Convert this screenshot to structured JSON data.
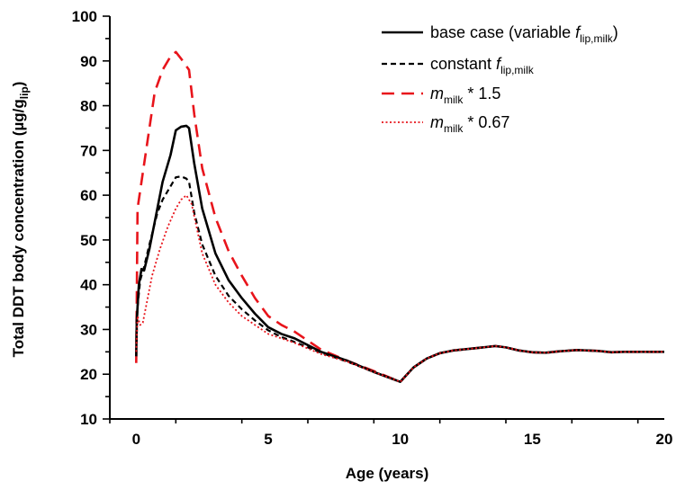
{
  "chart_data": {
    "type": "line",
    "title": "",
    "xlabel": "Age (years)",
    "ylabel": {
      "main": "Total DDT body concentration (µg/g",
      "sub": "lip",
      "close": ")"
    },
    "xlim": [
      -1,
      20
    ],
    "ylim": [
      10,
      100
    ],
    "xticks": [
      0,
      5,
      10,
      15,
      20
    ],
    "yticks": [
      10,
      20,
      30,
      40,
      50,
      60,
      70,
      80,
      90,
      100
    ],
    "grid": false,
    "legend_position": "top-right",
    "series": [
      {
        "name": "base case (variable f_lip,milk)",
        "legend": {
          "prefix": "base case (variable ",
          "sym": "f",
          "sub": "lip,milk",
          "suffix": ")"
        },
        "color": "#000000",
        "style": "solid",
        "x": [
          0,
          0.02,
          0.1,
          0.2,
          0.3,
          0.5,
          0.8,
          1.0,
          1.3,
          1.5,
          1.7,
          1.9,
          2.0,
          2.2,
          2.5,
          3.0,
          3.5,
          4.0,
          4.5,
          5.0,
          5.5,
          6.0,
          7.0,
          8.0,
          9.0,
          10.0,
          10.5,
          11.0,
          11.5,
          12.0,
          12.5,
          13.0,
          13.6,
          14.0,
          14.5,
          15.0,
          15.5,
          16.0,
          16.7,
          17.5,
          18.0,
          18.5,
          19.0,
          19.5,
          20.0
        ],
        "y": [
          24,
          32,
          40,
          43.5,
          43.2,
          48,
          57,
          63,
          69,
          74.5,
          75.3,
          75.5,
          75,
          67,
          57,
          47,
          41,
          37,
          33.5,
          30.5,
          29,
          28,
          25,
          23,
          20.5,
          18.3,
          21.5,
          23.5,
          24.7,
          25.3,
          25.6,
          25.9,
          26.3,
          26,
          25.3,
          24.9,
          24.8,
          25.1,
          25.4,
          25.2,
          24.9,
          25.0,
          25.0,
          25.0,
          25.0
        ]
      },
      {
        "name": "constant f_lip,milk",
        "legend": {
          "prefix": "constant ",
          "sym": "f",
          "sub": "lip,milk",
          "suffix": ""
        },
        "color": "#000000",
        "style": "dash",
        "x": [
          0,
          0.05,
          0.15,
          0.3,
          0.5,
          0.8,
          1.0,
          1.3,
          1.5,
          1.7,
          1.9,
          2.0,
          2.2,
          2.5,
          3.0,
          3.5,
          4.0,
          4.5,
          5.0,
          5.5,
          6.0,
          7.0,
          8.0,
          9.0,
          10.0,
          10.5,
          11.0,
          11.5,
          12.0,
          12.5,
          13.0,
          13.6,
          14.0,
          14.5,
          15.0,
          15.5,
          16.0,
          16.7,
          17.5,
          18.0,
          18.5,
          19.0,
          19.5,
          20.0
        ],
        "y": [
          25,
          35,
          41,
          44,
          49,
          56,
          59,
          62,
          64,
          64.2,
          63.7,
          63,
          56,
          49,
          42,
          37.5,
          34.5,
          32,
          29.8,
          28.3,
          27.2,
          24.8,
          22.8,
          20.5,
          18.3,
          21.5,
          23.5,
          24.7,
          25.3,
          25.6,
          25.9,
          26.3,
          26,
          25.3,
          24.9,
          24.8,
          25.1,
          25.4,
          25.2,
          24.9,
          25.0,
          25.0,
          25.0,
          25.0
        ]
      },
      {
        "name": "m_milk * 1.5",
        "legend": {
          "prefix": "",
          "sym": "m",
          "sub": "milk",
          "suffix": " * 1.5"
        },
        "color": "#e8141b",
        "style": "longdash",
        "x": [
          0,
          0.05,
          0.2,
          0.4,
          0.7,
          1.0,
          1.3,
          1.5,
          1.7,
          2.0,
          2.2,
          2.5,
          3.0,
          3.5,
          4.0,
          4.5,
          5.0,
          5.5,
          6.0,
          7.0,
          8.0,
          9.0,
          10.0,
          10.5,
          11.0,
          11.5,
          12.0,
          12.5,
          13.0,
          13.6,
          14.0,
          14.5,
          15.0,
          15.5,
          16.0,
          16.7,
          17.5,
          18.0,
          18.5,
          19.0,
          19.5,
          20.0
        ],
        "y": [
          22.5,
          57,
          63,
          71,
          83,
          88,
          91,
          92,
          90.5,
          88,
          78,
          66,
          55,
          47.5,
          42,
          37,
          33,
          31,
          29.5,
          25.5,
          23,
          20.7,
          18.3,
          21.5,
          23.5,
          24.7,
          25.3,
          25.6,
          25.9,
          26.3,
          26,
          25.3,
          24.9,
          24.8,
          25.1,
          25.4,
          25.2,
          24.9,
          25.0,
          25.0,
          25.0,
          25.0
        ]
      },
      {
        "name": "m_milk * 0.67",
        "legend": {
          "prefix": "",
          "sym": "m",
          "sub": "milk",
          "suffix": " * 0.67"
        },
        "color": "#e8141b",
        "style": "dot",
        "x": [
          0,
          0.05,
          0.15,
          0.25,
          0.4,
          0.6,
          0.9,
          1.2,
          1.5,
          1.7,
          1.9,
          2.1,
          2.5,
          3.0,
          3.5,
          4.0,
          4.5,
          5.0,
          5.5,
          6.0,
          7.0,
          8.0,
          9.0,
          10.0,
          10.5,
          11.0,
          11.5,
          12.0,
          12.5,
          13.0,
          13.6,
          14.0,
          14.5,
          15.0,
          15.5,
          16.0,
          16.7,
          17.5,
          18.0,
          18.5,
          19.0,
          19.5,
          20.0
        ],
        "y": [
          25,
          33,
          31,
          31.5,
          36,
          42,
          48,
          53,
          57,
          59,
          60,
          58,
          47,
          40,
          36,
          33,
          31,
          29,
          28,
          27,
          24.5,
          22.8,
          20.5,
          18.3,
          21.5,
          23.5,
          24.7,
          25.3,
          25.6,
          25.9,
          26.3,
          26,
          25.3,
          24.9,
          24.8,
          25.1,
          25.4,
          25.2,
          24.9,
          25.0,
          25.0,
          25.0,
          25.0
        ]
      }
    ]
  }
}
